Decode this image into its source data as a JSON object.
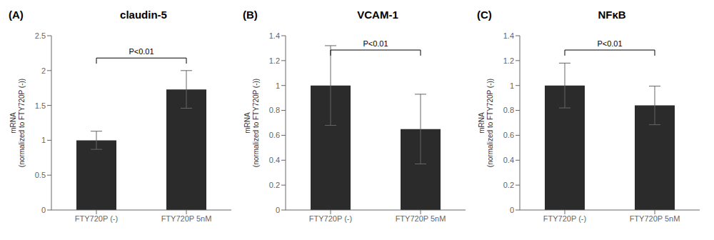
{
  "chart_data": [
    {
      "type": "bar",
      "panel_label": "(A)",
      "title": "claudin-5",
      "categories": [
        "FTY720P (-)",
        "FTY720P 5nM"
      ],
      "values": [
        1.0,
        1.73
      ],
      "errors": [
        0.13,
        0.27
      ],
      "color": "#2b2b2b",
      "ylabel": "mRNA\n(normalized to FTY720P (-))",
      "ylim": [
        0,
        2.5
      ],
      "yticks": [
        0,
        0.5,
        1,
        1.5,
        2,
        2.5
      ],
      "grid": false,
      "annotations": [
        {
          "text": "P<0.01",
          "y": 2.18,
          "y_end": 2.1
        }
      ]
    },
    {
      "type": "bar",
      "panel_label": "(B)",
      "title": "VCAM-1",
      "categories": [
        "FTY720P (-)",
        "FTY720P 5nM"
      ],
      "values": [
        1.0,
        0.65
      ],
      "errors": [
        0.32,
        0.28
      ],
      "color": "#2b2b2b",
      "ylabel": "mRNA\n(normalized to FTY720P (-))",
      "ylim": [
        0,
        1.4
      ],
      "yticks": [
        0,
        0.2,
        0.4,
        0.6,
        0.8,
        1,
        1.2,
        1.4
      ],
      "grid": false,
      "annotations": [
        {
          "text": "P<0.01",
          "y": 1.285,
          "y_end": 1.24
        }
      ]
    },
    {
      "type": "bar",
      "panel_label": "(C)",
      "title": "NFκB",
      "categories": [
        "FTY720P (-)",
        "FTY720P 5nM"
      ],
      "values": [
        1.0,
        0.84
      ],
      "errors": [
        0.18,
        0.155
      ],
      "color": "#2b2b2b",
      "ylabel": "mRNA\n(normalized to FTY720P (-))",
      "ylim": [
        0,
        1.4
      ],
      "yticks": [
        0,
        0.2,
        0.4,
        0.6,
        0.8,
        1,
        1.2,
        1.4
      ],
      "grid": false,
      "annotations": [
        {
          "text": "P<0.01",
          "y": 1.285,
          "y_end": 1.24
        }
      ]
    }
  ]
}
